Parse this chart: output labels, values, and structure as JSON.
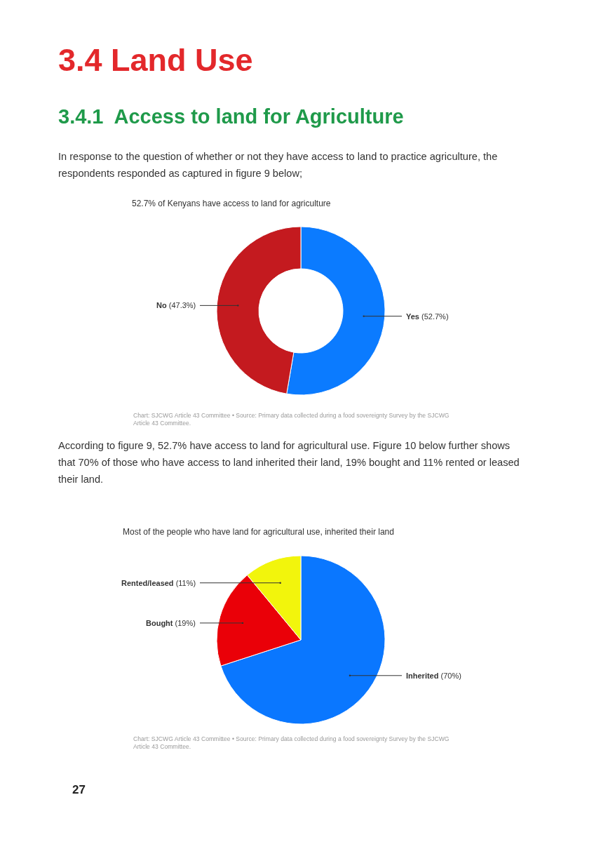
{
  "chart_data": [
    {
      "type": "donut",
      "title": "52.7% of Kenyans have access to land for agriculture",
      "categories": [
        "Yes",
        "No"
      ],
      "values": [
        52.7,
        47.3
      ],
      "colors": [
        "#0b7bff",
        "#c41a1f"
      ],
      "value_labels": [
        "(52.7%)",
        "(47.3%)"
      ],
      "annotations": [
        "3.4 Land Use",
        "3.4.1  Access to land for Agriculture",
        "In response to the question of whether or not they have access to land to practice agriculture, the respondents responded as captured in figure 9 below;",
        "Chart: SJCWG Article 43 Committee • Source: Primary data collected during a food sovereignty Survey by the SJCWG Article 43 Committee."
      ]
    },
    {
      "type": "pie",
      "title": "Most of the people who have land for agricultural use, inherited their land",
      "categories": [
        "Inherited",
        "Bought",
        "Rented/leased"
      ],
      "values": [
        70,
        19,
        11
      ],
      "colors": [
        "#0a77ff",
        "#ea0008",
        "#f2f50c"
      ],
      "value_labels": [
        "(70%)",
        "(19%)",
        "(11%)"
      ],
      "annotations": [
        "According to figure 9, 52.7% have access to land for agricultural use. Figure 10 below further shows that 70% of those who have access to land inherited their land, 19% bought and 11% rented or leased their land.",
        "Chart: SJCWG Article 43 Committee • Source: Primary data collected during a food sovereignty Survey by the SJCWG Article 43 Committee.",
        "27"
      ]
    }
  ]
}
